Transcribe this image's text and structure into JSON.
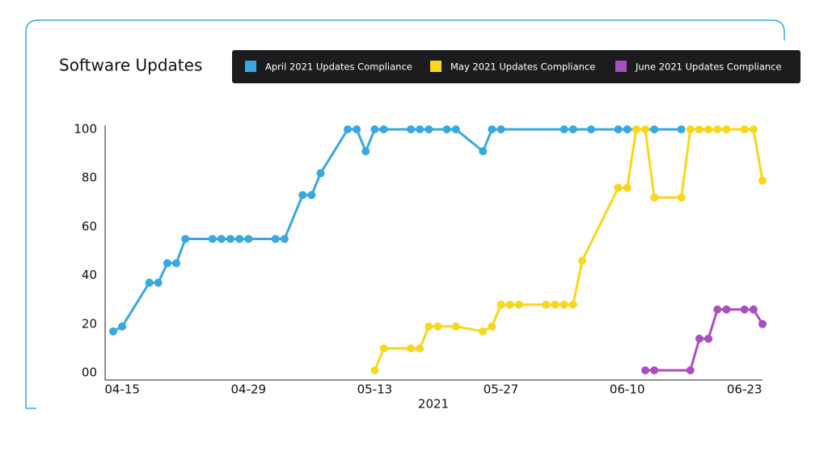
{
  "chart_data": {
    "type": "line",
    "title": "Software Updates",
    "xlabel": "2021",
    "legend": "top-right",
    "xlim": [
      "2021-04-14",
      "2021-06-25"
    ],
    "xticks": [
      {
        "value": "2021-04-15",
        "label": "04-15"
      },
      {
        "value": "2021-04-29",
        "label": "04-29"
      },
      {
        "value": "2021-05-13",
        "label": "05-13"
      },
      {
        "value": "2021-05-27",
        "label": "05-27"
      },
      {
        "value": "2021-06-10",
        "label": "06-10"
      },
      {
        "value": "2021-06-23",
        "label": "06-23"
      }
    ],
    "ylim": [
      0,
      100
    ],
    "yticks": [
      {
        "value": 0,
        "label": "00"
      },
      20,
      40,
      60,
      80,
      100
    ],
    "series": [
      {
        "name": "April 2021 Updates Compliance",
        "color": "#38a9e0",
        "x": [
          "2021-04-14",
          "2021-04-15",
          "2021-04-18",
          "2021-04-19",
          "2021-04-20",
          "2021-04-21",
          "2021-04-22",
          "2021-04-25",
          "2021-04-26",
          "2021-04-27",
          "2021-04-28",
          "2021-04-29",
          "2021-05-02",
          "2021-05-03",
          "2021-05-05",
          "2021-05-06",
          "2021-05-07",
          "2021-05-10",
          "2021-05-11",
          "2021-05-12",
          "2021-05-13",
          "2021-05-14",
          "2021-05-17",
          "2021-05-18",
          "2021-05-19",
          "2021-05-21",
          "2021-05-22",
          "2021-05-25",
          "2021-05-26",
          "2021-05-27",
          "2021-06-03",
          "2021-06-04",
          "2021-06-06",
          "2021-06-09",
          "2021-06-10",
          "2021-06-13",
          "2021-06-16"
        ],
        "values": [
          17,
          19,
          37,
          37,
          45,
          45,
          55,
          55,
          55,
          55,
          55,
          55,
          55,
          55,
          73,
          73,
          82,
          100,
          100,
          91,
          100,
          100,
          100,
          100,
          100,
          100,
          100,
          91,
          100,
          100,
          100,
          100,
          100,
          100,
          100,
          100,
          100
        ]
      },
      {
        "name": "May 2021 Updates Compliance",
        "color": "#f7d81c",
        "x": [
          "2021-05-13",
          "2021-05-14",
          "2021-05-17",
          "2021-05-18",
          "2021-05-19",
          "2021-05-20",
          "2021-05-22",
          "2021-05-25",
          "2021-05-26",
          "2021-05-27",
          "2021-05-28",
          "2021-05-29",
          "2021-06-01",
          "2021-06-02",
          "2021-06-03",
          "2021-06-04",
          "2021-06-05",
          "2021-06-09",
          "2021-06-10",
          "2021-06-11",
          "2021-06-12",
          "2021-06-13",
          "2021-06-16",
          "2021-06-17",
          "2021-06-18",
          "2021-06-19",
          "2021-06-20",
          "2021-06-21",
          "2021-06-23",
          "2021-06-24",
          "2021-06-25"
        ],
        "values": [
          1,
          10,
          10,
          10,
          19,
          19,
          19,
          17,
          19,
          28,
          28,
          28,
          28,
          28,
          28,
          28,
          46,
          76,
          76,
          100,
          100,
          72,
          72,
          100,
          100,
          100,
          100,
          100,
          100,
          100,
          79
        ]
      },
      {
        "name": "June 2021 Updates Compliance",
        "color": "#a94fc1",
        "x": [
          "2021-06-12",
          "2021-06-13",
          "2021-06-17",
          "2021-06-18",
          "2021-06-19",
          "2021-06-20",
          "2021-06-21",
          "2021-06-23",
          "2021-06-24",
          "2021-06-25"
        ],
        "values": [
          1,
          1,
          1,
          14,
          14,
          26,
          26,
          26,
          26,
          20
        ]
      }
    ]
  }
}
